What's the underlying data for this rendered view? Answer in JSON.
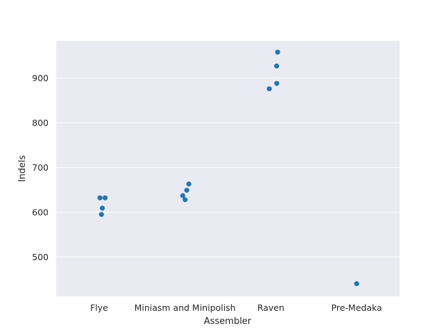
{
  "chart_data": {
    "type": "scatter",
    "subtype": "strip",
    "xlabel": "Assembler",
    "ylabel": "Indels",
    "categories": [
      "Flye",
      "Miniasm and Minipolish",
      "Raven",
      "Pre-Medaka"
    ],
    "points": [
      {
        "category": "Flye",
        "value": 632
      },
      {
        "category": "Flye",
        "value": 632
      },
      {
        "category": "Flye",
        "value": 609
      },
      {
        "category": "Flye",
        "value": 595
      },
      {
        "category": "Miniasm and Minipolish",
        "value": 663
      },
      {
        "category": "Miniasm and Minipolish",
        "value": 649
      },
      {
        "category": "Miniasm and Minipolish",
        "value": 637
      },
      {
        "category": "Miniasm and Minipolish",
        "value": 628
      },
      {
        "category": "Raven",
        "value": 958
      },
      {
        "category": "Raven",
        "value": 927
      },
      {
        "category": "Raven",
        "value": 888
      },
      {
        "category": "Raven",
        "value": 876
      },
      {
        "category": "Pre-Medaka",
        "value": 440
      }
    ],
    "yticks": [
      500,
      600,
      700,
      800,
      900
    ],
    "ylim": [
      412,
      983
    ],
    "grid": true,
    "colors": {
      "point": "#1f77b4",
      "plot_background": "#eaeaf2",
      "grid": "#ffffff",
      "text": "#262626"
    }
  }
}
